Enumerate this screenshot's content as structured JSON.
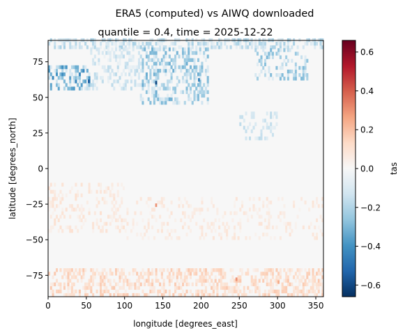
{
  "chart_data": {
    "type": "heatmap",
    "suptitle": "ERA5 (computed) vs AIWQ downloaded",
    "title": "quantile = 0.4, time = 2025-12-22",
    "xlabel": "longitude [degrees_east]",
    "ylabel": "latitude [degrees_north]",
    "xlim": [
      0,
      360
    ],
    "ylim": [
      -90,
      90
    ],
    "xticks": [
      0,
      50,
      100,
      150,
      200,
      250,
      300,
      350
    ],
    "yticks": [
      -75,
      -50,
      -25,
      0,
      25,
      50,
      75
    ],
    "grid": false,
    "colormap": "RdBu_r",
    "colors": {
      "negative_max": "#053061",
      "neutral": "#f7f7f7",
      "positive_max": "#67001f"
    },
    "colorbar": {
      "label": "tas",
      "vmin": -0.66,
      "vmax": 0.66,
      "ticks": [
        -0.6,
        -0.4,
        -0.2,
        0.0,
        0.2,
        0.4,
        0.6
      ],
      "tick_labels": [
        "−0.6",
        "−0.4",
        "−0.2",
        "0.0",
        "0.2",
        "0.4",
        "0.6"
      ]
    },
    "regions": [
      {
        "lon": [
          0,
          360
        ],
        "lat": [
          84,
          90
        ],
        "value": -0.15,
        "density": 0.55
      },
      {
        "lon": [
          0,
          55
        ],
        "lat": [
          55,
          72
        ],
        "value": -0.3,
        "density": 0.45
      },
      {
        "lon": [
          55,
          120
        ],
        "lat": [
          55,
          84
        ],
        "value": -0.12,
        "density": 0.4
      },
      {
        "lon": [
          120,
          210
        ],
        "lat": [
          45,
          84
        ],
        "value": -0.22,
        "density": 0.45
      },
      {
        "lon": [
          270,
          340
        ],
        "lat": [
          62,
          84
        ],
        "value": -0.2,
        "density": 0.35
      },
      {
        "lon": [
          250,
          300
        ],
        "lat": [
          20,
          38
        ],
        "value": -0.12,
        "density": 0.3
      },
      {
        "lon": [
          0,
          360
        ],
        "lat": [
          -90,
          -72
        ],
        "value": 0.12,
        "density": 0.5
      },
      {
        "lon": [
          100,
          360
        ],
        "lat": [
          -50,
          -20
        ],
        "value": 0.06,
        "density": 0.2
      },
      {
        "lon": [
          0,
          100
        ],
        "lat": [
          -45,
          -10
        ],
        "value": 0.07,
        "density": 0.25
      }
    ],
    "hotspots": [
      {
        "lon": 52,
        "lat": 60,
        "value": -0.55
      },
      {
        "lon": 140,
        "lat": 59,
        "value": -0.6
      },
      {
        "lon": 196,
        "lat": 61,
        "value": -0.45
      },
      {
        "lon": 140,
        "lat": -27,
        "value": 0.3
      },
      {
        "lon": 245,
        "lat": -79,
        "value": 0.3
      },
      {
        "lon": 300,
        "lat": -81,
        "value": 0.25
      }
    ]
  }
}
